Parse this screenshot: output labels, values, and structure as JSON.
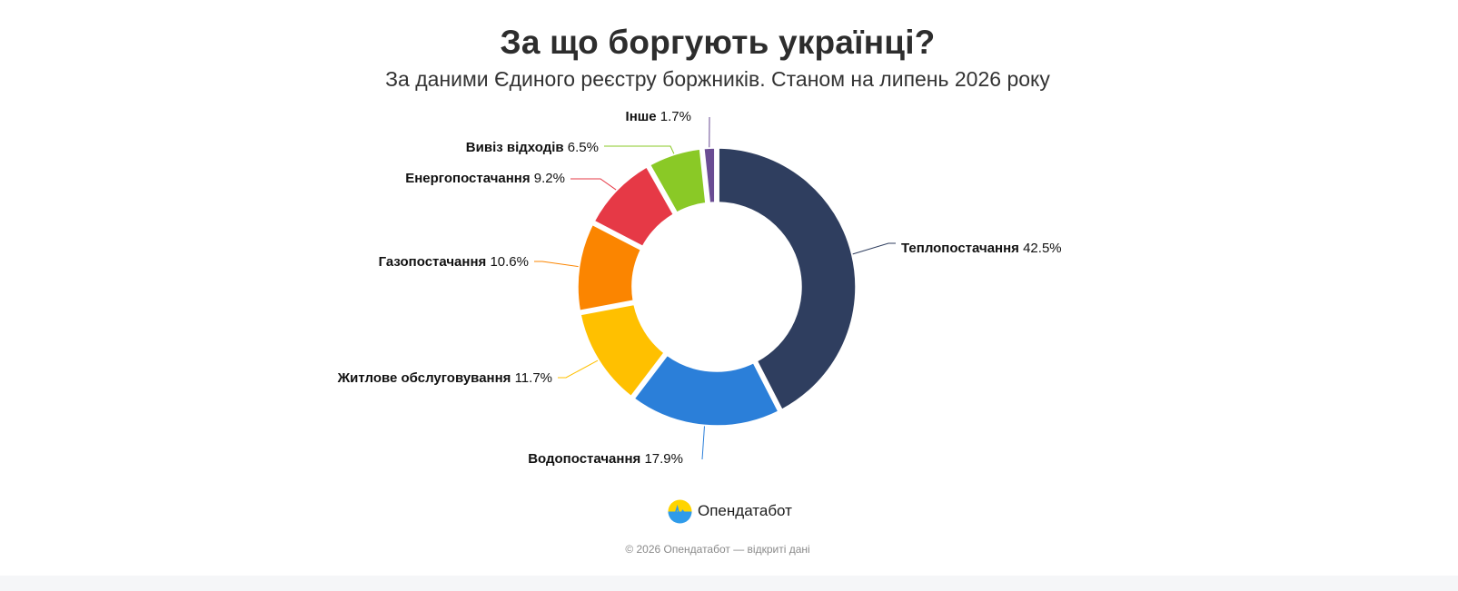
{
  "header": {
    "title": "За що боргують українці?",
    "subtitle": "За даними Єдиного реєстру боржників. Станом на липень 2026 року"
  },
  "chart_data": {
    "type": "pie",
    "style": "donut",
    "title": "За що боргують українці?",
    "subtitle": "За даними Єдиного реєстру боржників. Станом на липень 2026 року",
    "unit": "%",
    "slices": [
      {
        "name": "Теплопостачання",
        "value": 42.5,
        "label": "42.5%",
        "color": "#2f3e5f"
      },
      {
        "name": "Водопостачання",
        "value": 17.9,
        "label": "17.9%",
        "color": "#2b7fd9"
      },
      {
        "name": "Житлове обслуговування",
        "value": 11.7,
        "label": "11.7%",
        "color": "#ffc000"
      },
      {
        "name": "Газопостачання",
        "value": 10.6,
        "label": "10.6%",
        "color": "#fb8500"
      },
      {
        "name": "Енергопостачання",
        "value": 9.2,
        "label": "9.2%",
        "color": "#e63946"
      },
      {
        "name": "Вивіз відходів",
        "value": 6.5,
        "label": "6.5%",
        "color": "#8ac926"
      },
      {
        "name": "Інше",
        "value": 1.7,
        "label": "1.7%",
        "color": "#6a4c93"
      }
    ]
  },
  "brand": {
    "name": "Опендатабот",
    "logo_icon": "opendatabot-logo-icon",
    "logo_colors": [
      "#ffd400",
      "#2f9bea"
    ]
  },
  "footer": {
    "copyright": "© 2026 Опендатабот — відкриті дані"
  }
}
